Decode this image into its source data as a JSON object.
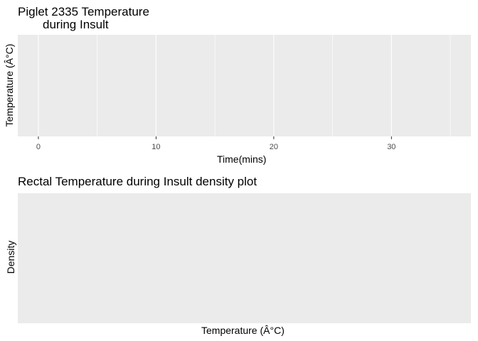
{
  "chart_data": [
    {
      "type": "line",
      "title_line1": "Piglet 2335 Temperature",
      "title_line2": "during Insult",
      "xlabel": "Time(mins)",
      "ylabel": "Temperature (Â°C)",
      "xlim": [
        -1.75,
        36.75
      ],
      "x_ticks": [
        0,
        10,
        20,
        30
      ],
      "x_tick_labels": [
        "0",
        "10",
        "20",
        "30"
      ],
      "x_minor_ticks": [
        5,
        15,
        25,
        35
      ],
      "series": [],
      "grid": true,
      "panel_color": "#ebebeb",
      "grid_color": "#ffffff"
    },
    {
      "type": "area",
      "title": "Rectal Temperature during Insult density plot",
      "xlabel": "Temperature (Â°C)",
      "ylabel": "Density",
      "series": [],
      "grid": false,
      "panel_color": "#ebebeb"
    }
  ]
}
